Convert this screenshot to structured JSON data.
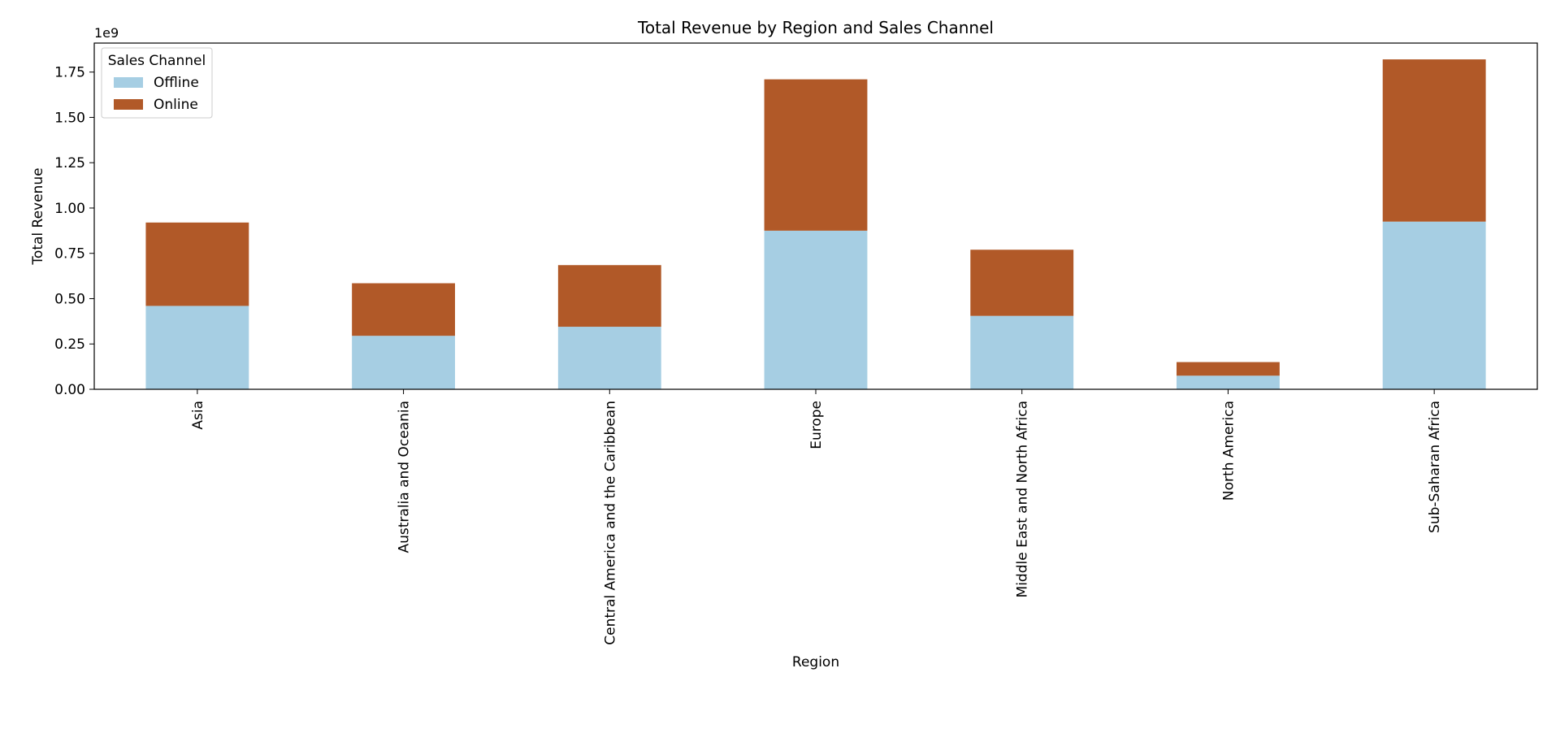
{
  "chart_data": {
    "type": "bar",
    "stacked": true,
    "title": "Total Revenue by Region and Sales Channel",
    "xlabel": "Region",
    "ylabel": "Total Revenue",
    "y_scale_label": "1e9",
    "ylim": [
      0,
      1.91
    ],
    "yticks": [
      "0.00",
      "0.25",
      "0.50",
      "0.75",
      "1.00",
      "1.25",
      "1.50",
      "1.75"
    ],
    "grid": false,
    "legend": {
      "title": "Sales Channel",
      "placement": "top-left"
    },
    "categories": [
      "Asia",
      "Australia and Oceania",
      "Central America and the Caribbean",
      "Europe",
      "Middle East and North Africa",
      "North America",
      "Sub-Saharan Africa"
    ],
    "series": [
      {
        "name": "Offline",
        "color": "#a6cee3",
        "values": [
          0.46,
          0.295,
          0.345,
          0.875,
          0.405,
          0.075,
          0.925
        ]
      },
      {
        "name": "Online",
        "color": "#b15928",
        "values": [
          0.46,
          0.29,
          0.34,
          0.835,
          0.365,
          0.075,
          0.895
        ]
      }
    ]
  }
}
